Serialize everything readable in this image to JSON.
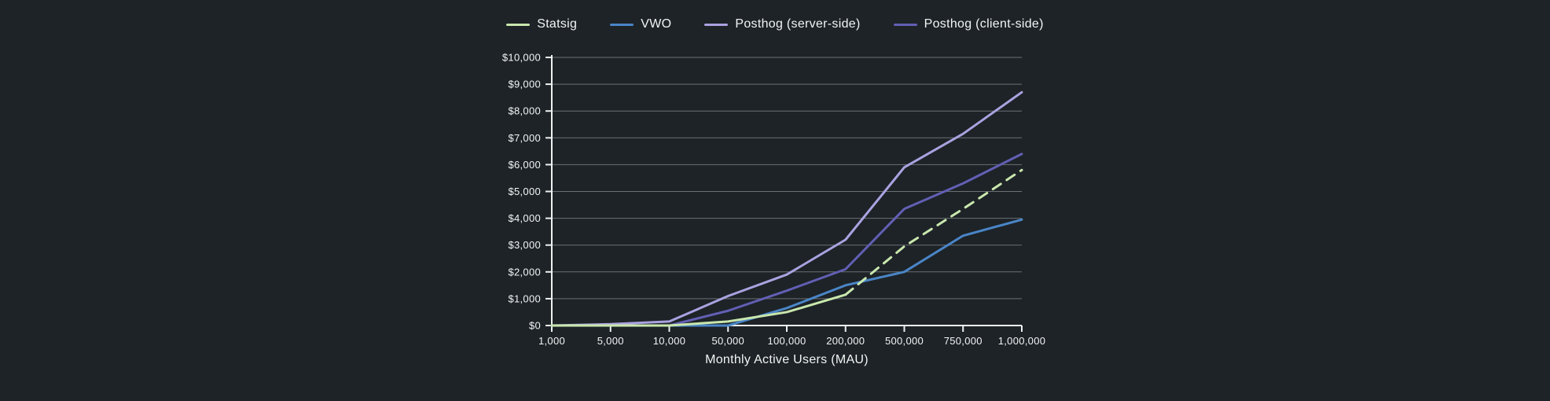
{
  "colors": {
    "background": "#1d2327",
    "text": "#f2f5f4",
    "gridline": "rgba(235,240,239,0.38)",
    "axis": "#eef1f0",
    "statsig_green": "#c9e7ad",
    "vwo_blue": "#4a85c7",
    "posthog_server_lavender": "#aaa2e0",
    "posthog_client_indigo": "#625fb4"
  },
  "chart_data": {
    "type": "line",
    "title": "",
    "xlabel": "Monthly Active Users (MAU)",
    "ylabel": "",
    "ylim": [
      0,
      10000
    ],
    "y_tick_step": 1000,
    "grid": "horizontal",
    "legend_position": "top-center",
    "x_tick_labels": [
      "1,000",
      "5,000",
      "10,000",
      "50,000",
      "100,000",
      "200,000",
      "500,000",
      "750,000",
      "1,000,000"
    ],
    "y_tick_labels": [
      "$0",
      "$1,000",
      "$2,000",
      "$3,000",
      "$4,000",
      "$5,000",
      "$6,000",
      "$7,000",
      "$8,000",
      "$9,000",
      "$10,000"
    ],
    "x_values": [
      1000,
      5000,
      10000,
      50000,
      100000,
      200000,
      500000,
      750000,
      1000000
    ],
    "series": [
      {
        "name": "Statsig",
        "color": "#c9e7ad",
        "style": "solid-then-dashed",
        "dash_start_index": 5,
        "values": [
          0,
          0,
          0,
          150,
          500,
          1150,
          2950,
          4350,
          5800
        ]
      },
      {
        "name": "VWO",
        "color": "#4a85c7",
        "style": "solid",
        "values": [
          0,
          0,
          0,
          0,
          650,
          1500,
          2000,
          3350,
          3950
        ]
      },
      {
        "name": "Posthog (server-side)",
        "color": "#aaa2e0",
        "style": "solid",
        "values": [
          0,
          50,
          150,
          1100,
          1900,
          3200,
          5900,
          7150,
          8700
        ]
      },
      {
        "name": "Posthog (client-side)",
        "color": "#625fb4",
        "style": "solid",
        "values": [
          0,
          0,
          0,
          550,
          1300,
          2100,
          4350,
          5300,
          6400
        ]
      }
    ]
  }
}
